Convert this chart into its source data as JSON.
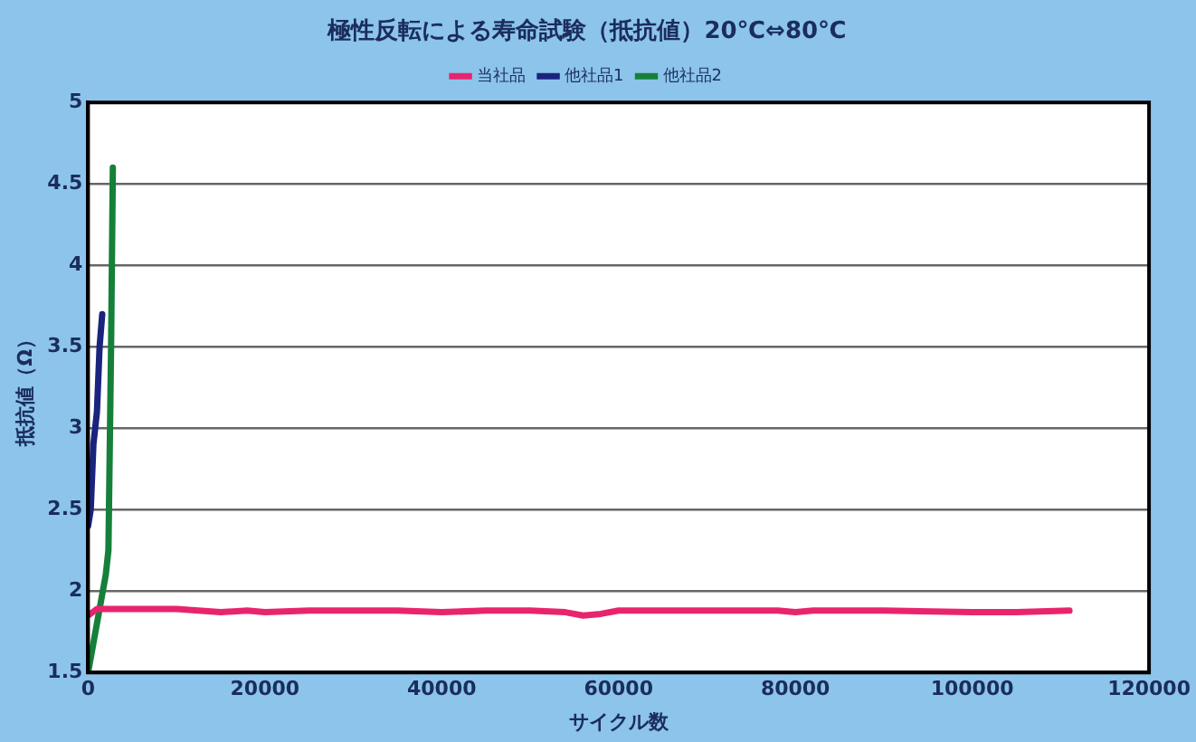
{
  "chart_data": {
    "type": "line",
    "title": "極性反転による寿命試験（抵抗値）20℃⇔80℃",
    "xlabel": "サイクル数",
    "ylabel": "抵抗値（Ω）",
    "xlim": [
      0,
      120000
    ],
    "xticks": [
      0,
      20000,
      40000,
      60000,
      80000,
      100000,
      120000
    ],
    "ylim": [
      1.5,
      5
    ],
    "yticks": [
      1.5,
      2,
      2.5,
      3,
      3.5,
      4,
      4.5,
      5
    ],
    "grid": "y",
    "legend": "top",
    "marker": "none",
    "line_style": "solid",
    "series": [
      {
        "name": "当社品",
        "color": "#e8246e",
        "x": [
          0,
          1000,
          5000,
          10000,
          15000,
          18000,
          20000,
          25000,
          30000,
          35000,
          40000,
          45000,
          50000,
          54000,
          56000,
          58000,
          60000,
          70000,
          78000,
          80000,
          82000,
          90000,
          100000,
          105000,
          111000
        ],
        "values": [
          1.85,
          1.89,
          1.89,
          1.89,
          1.87,
          1.88,
          1.87,
          1.88,
          1.88,
          1.88,
          1.87,
          1.88,
          1.88,
          1.87,
          1.85,
          1.86,
          1.88,
          1.88,
          1.88,
          1.87,
          1.88,
          1.88,
          1.87,
          1.87,
          1.88
        ]
      },
      {
        "name": "他社品1",
        "color": "#1a237e",
        "x": [
          0,
          300,
          600,
          1000,
          1300,
          1600
        ],
        "values": [
          2.4,
          2.5,
          2.9,
          3.1,
          3.5,
          3.7
        ]
      },
      {
        "name": "他社品2",
        "color": "#15803a",
        "x": [
          0,
          1000,
          2000,
          2300,
          2600,
          2800
        ],
        "values": [
          1.5,
          1.8,
          2.1,
          2.25,
          3.5,
          4.6
        ]
      }
    ]
  }
}
